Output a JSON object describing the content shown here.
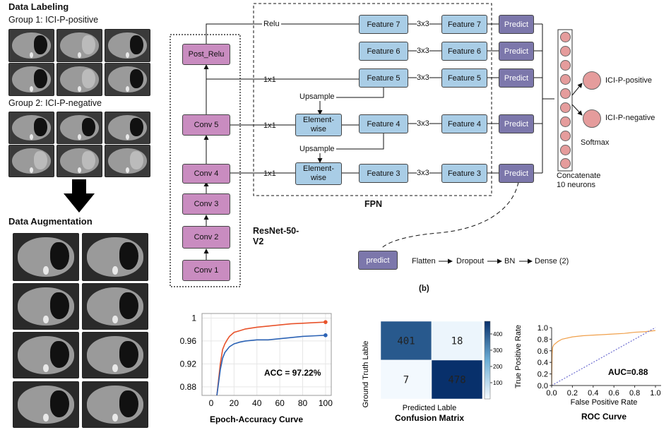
{
  "panel_a": {
    "data_labeling_title": "Data Labeling",
    "group1_label": "Group 1: ICI-P-positive",
    "group2_label": "Group 2: ICI-P-negative",
    "data_augmentation_title": "Data Augmentation"
  },
  "network": {
    "resnet_label_line1": "ResNet-50-",
    "resnet_label_line2": "V2",
    "fpn_label": "FPN",
    "resnet_blocks": [
      "Post_Relu",
      "Conv 5",
      "Conv 4",
      "Conv 3",
      "Conv 2",
      "Conv 1"
    ],
    "relu_label": "Relu",
    "conn_1x1": "1x1",
    "conn_3x3": "3x3",
    "upsample": "Upsample",
    "elementwise_line1": "Element-",
    "elementwise_line2": "wise",
    "features_left": [
      "Feature 7",
      "Feature 6",
      "Feature 5",
      "Feature 4",
      "Feature 3"
    ],
    "features_right": [
      "Feature 7",
      "Feature 6",
      "Feature 5",
      "Feature 4",
      "Feature 3"
    ],
    "predict": "Predict",
    "concatenate_line1": "Concatenate",
    "concatenate_line2": "10 neurons",
    "softmax": "Softmax",
    "out_positive": "ICI-P-positive",
    "out_negative": "ICI-P-negative",
    "head_predict": "predict",
    "head_steps": [
      "Flatten",
      "Dropout",
      "BN",
      "Dense (2)"
    ],
    "panel_b_label": "(b)"
  },
  "chart_data": [
    {
      "type": "line",
      "title": "Epoch-Accuracy Curve",
      "annotation": "ACC = 97.22%",
      "x_ticks": [
        "0",
        "20",
        "40",
        "60",
        "80",
        "100"
      ],
      "y_ticks": [
        "0.88",
        "0.92",
        "0.96",
        "1"
      ],
      "xlim": [
        -8,
        105
      ],
      "ylim": [
        0.865,
        1.008
      ],
      "series": [
        {
          "color": "#e8532b",
          "x": [
            5,
            8,
            10,
            12,
            14,
            16,
            20,
            25,
            30,
            40,
            50,
            60,
            70,
            80,
            90,
            100
          ],
          "y": [
            0.865,
            0.92,
            0.945,
            0.955,
            0.962,
            0.968,
            0.975,
            0.978,
            0.981,
            0.984,
            0.986,
            0.988,
            0.99,
            0.991,
            0.992,
            0.993
          ]
        },
        {
          "color": "#2c63b5",
          "x": [
            5,
            8,
            10,
            12,
            14,
            16,
            20,
            25,
            30,
            40,
            50,
            60,
            70,
            80,
            90,
            100
          ],
          "y": [
            0.865,
            0.91,
            0.93,
            0.94,
            0.945,
            0.95,
            0.955,
            0.958,
            0.96,
            0.962,
            0.962,
            0.964,
            0.966,
            0.968,
            0.969,
            0.97
          ]
        }
      ]
    },
    {
      "type": "heatmap",
      "title": "Confusion Matrix",
      "xlabel": "Predicted Lable",
      "ylabel": "Ground Truth Lable",
      "values": [
        [
          401,
          18
        ],
        [
          7,
          478
        ]
      ],
      "colorbar_ticks": [
        "100",
        "200",
        "300",
        "400"
      ],
      "colorbar_range": [
        0,
        478
      ]
    },
    {
      "type": "line",
      "title": "ROC Curve",
      "xlabel": "False Positive Rate",
      "ylabel": "True Positive Rate",
      "annotation": "AUC=0.88",
      "x_ticks": [
        "0.0",
        "0.2",
        "0.4",
        "0.6",
        "0.8",
        "1.0"
      ],
      "y_ticks": [
        "0.0",
        "0.2",
        "0.4",
        "0.6",
        "0.8",
        "1.0"
      ],
      "xlim": [
        0,
        1
      ],
      "ylim": [
        0,
        1
      ],
      "series": [
        {
          "color": "#f0a04b",
          "x": [
            0,
            0.005,
            0.01,
            0.02,
            0.04,
            0.06,
            0.1,
            0.2,
            0.3,
            0.4,
            0.5,
            0.6,
            0.7,
            0.8,
            0.9,
            1.0
          ],
          "y": [
            0,
            0.55,
            0.66,
            0.7,
            0.73,
            0.76,
            0.8,
            0.84,
            0.86,
            0.87,
            0.88,
            0.89,
            0.9,
            0.92,
            0.93,
            0.95
          ]
        },
        {
          "color": "#6c6cd0",
          "dashed": true,
          "x": [
            0,
            1
          ],
          "y": [
            0,
            1
          ]
        }
      ]
    }
  ]
}
